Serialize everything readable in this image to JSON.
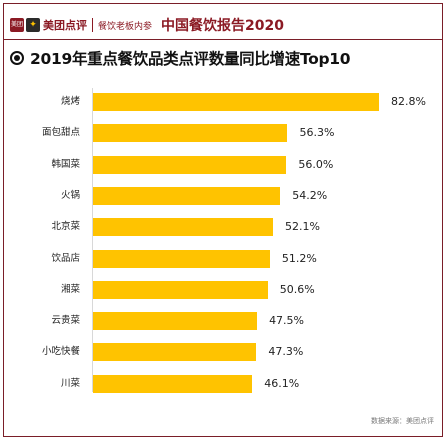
{
  "header": {
    "logo_mark": "美团",
    "logo_icon": "dog-icon",
    "brand": "美团点评",
    "sub_brand": "餐饮老板内参",
    "report_title": "中国餐饮报告2020"
  },
  "chart_data": {
    "type": "bar",
    "orientation": "horizontal",
    "title": "2019年重点餐饮品类点评数量同比增速Top10",
    "categories": [
      "烧烤",
      "面包甜点",
      "韩国菜",
      "火锅",
      "北京菜",
      "饮品店",
      "湘菜",
      "云贵菜",
      "小吃快餐",
      "川菜"
    ],
    "values": [
      82.8,
      56.3,
      56.0,
      54.2,
      52.1,
      51.2,
      50.6,
      47.5,
      47.3,
      46.1
    ],
    "value_labels": [
      "82.8%",
      "56.3%",
      "56.0%",
      "54.2%",
      "52.1%",
      "51.2%",
      "50.6%",
      "47.5%",
      "47.3%",
      "46.1%"
    ],
    "unit": "%",
    "xlim": [
      0,
      100
    ],
    "grid": false,
    "bar_color": "#ffc300"
  },
  "footer": {
    "source": "数据来源：美团点评"
  },
  "colors": {
    "accent": "#8b1a24",
    "bar": "#ffc300"
  }
}
